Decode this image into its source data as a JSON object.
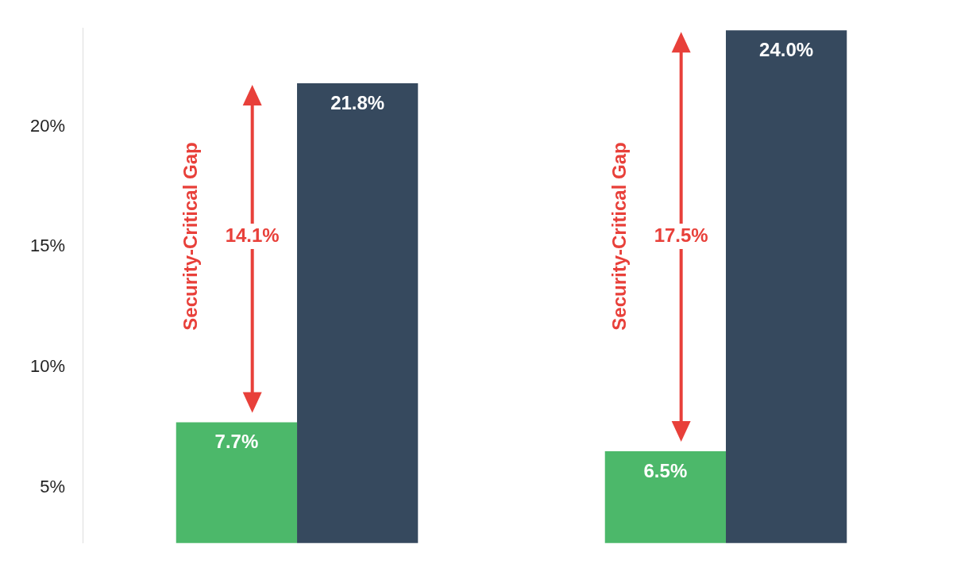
{
  "chart_data": {
    "type": "bar",
    "categories": [
      null,
      null
    ],
    "series": [
      {
        "color": "#4cb86a",
        "values": [
          7.7,
          6.5
        ],
        "value_labels": [
          "7.7%",
          "6.5%"
        ]
      },
      {
        "color": "#36495e",
        "values": [
          21.8,
          24.0
        ],
        "value_labels": [
          "21.8%",
          "24.0%"
        ]
      }
    ],
    "ylim": [
      2.68,
      24.1
    ],
    "yticks": [
      {
        "value": 5,
        "label": "5%"
      },
      {
        "value": 10,
        "label": "10%"
      },
      {
        "value": 15,
        "label": "15%"
      },
      {
        "value": 20,
        "label": "20%"
      }
    ],
    "grid": false,
    "legend": false,
    "annotations": [
      "Security-Critical Gap",
      "14.1%",
      "Security-Critical Gap",
      "17.5%"
    ]
  }
}
